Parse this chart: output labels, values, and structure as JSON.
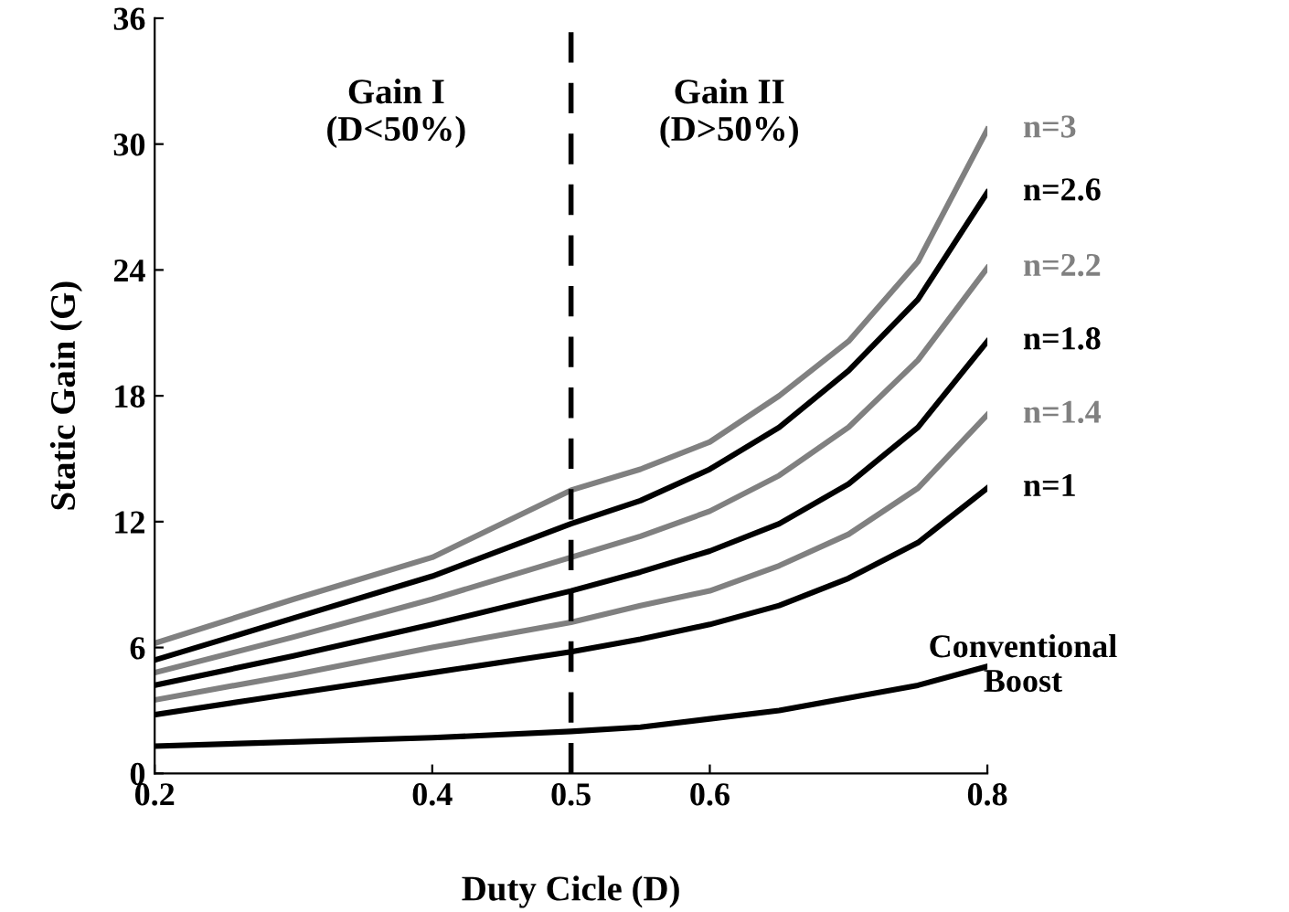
{
  "chart_data": {
    "type": "line",
    "xlabel": "Duty Cicle (D)",
    "ylabel": "Static Gain (G)",
    "xlim": [
      0.2,
      0.8
    ],
    "xticks": [
      0.2,
      0.4,
      0.5,
      0.6,
      0.8
    ],
    "ylim": [
      0,
      36
    ],
    "yticks": [
      0,
      6,
      12,
      18,
      24,
      30,
      36
    ],
    "x": [
      0.2,
      0.3,
      0.4,
      0.5,
      0.55,
      0.6,
      0.65,
      0.7,
      0.75,
      0.8
    ],
    "grid": false,
    "legend": false,
    "marker": "none",
    "line_style": "solid",
    "ref_lines": [
      {
        "axis": "x",
        "value": 0.5,
        "color": "#000000",
        "line_style": "dashed"
      }
    ],
    "annotations": [
      "Gain I\n(D<50%)",
      "Gain II\n(D>50%)"
    ],
    "series": [
      {
        "name": "n=3",
        "color": "#808080",
        "values": [
          6.2,
          8.3,
          10.3,
          13.5,
          14.5,
          15.8,
          18.0,
          20.6,
          24.4,
          30.7
        ]
      },
      {
        "name": "n=2.6",
        "color": "#000000",
        "values": [
          5.4,
          7.4,
          9.4,
          11.9,
          13.0,
          14.5,
          16.5,
          19.2,
          22.6,
          27.7
        ]
      },
      {
        "name": "n=2.2",
        "color": "#808080",
        "values": [
          4.8,
          6.5,
          8.3,
          10.3,
          11.3,
          12.5,
          14.2,
          16.5,
          19.7,
          24.1
        ]
      },
      {
        "name": "n=1.8",
        "color": "#000000",
        "values": [
          4.2,
          5.6,
          7.1,
          8.7,
          9.6,
          10.6,
          11.9,
          13.8,
          16.5,
          20.6
        ]
      },
      {
        "name": "n=1.4",
        "color": "#808080",
        "values": [
          3.5,
          4.7,
          6.0,
          7.2,
          8.0,
          8.7,
          9.9,
          11.4,
          13.6,
          17.1
        ]
      },
      {
        "name": "n=1",
        "color": "#000000",
        "values": [
          2.8,
          3.8,
          4.8,
          5.8,
          6.4,
          7.1,
          8.0,
          9.3,
          11.0,
          13.6
        ]
      },
      {
        "name": "Conventional\nBoost",
        "color": "#000000",
        "values": [
          1.3,
          1.5,
          1.7,
          2.0,
          2.2,
          2.6,
          3.0,
          3.6,
          4.2,
          5.1
        ]
      }
    ]
  }
}
